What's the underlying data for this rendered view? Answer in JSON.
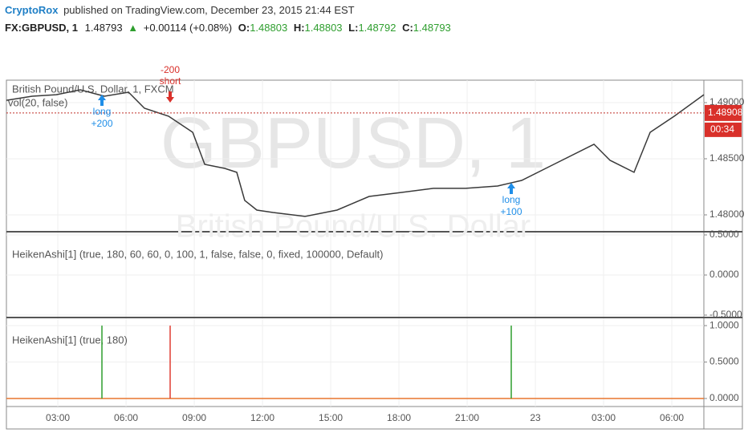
{
  "header": {
    "author": "CryptoRox",
    "published": "published on TradingView.com, December 23, 2015 21:44 EST",
    "symbol": "FX:GBPUSD, 1",
    "last": "1.48793",
    "arrow": "▲",
    "change": "+0.00114 (+0.08%)",
    "ohlc": [
      {
        "label": "O:",
        "value": "1.48803"
      },
      {
        "label": "H:",
        "value": "1.48803"
      },
      {
        "label": "L:",
        "value": "1.48792"
      },
      {
        "label": "C:",
        "value": "1.48793"
      }
    ]
  },
  "chart_data": [
    {
      "type": "line",
      "title": "British Pound/U.S. Dollar, 1, FXCM",
      "indicator": "vol(20, false)",
      "watermark": "GBPUSD, 1",
      "watermark_sub": "British Pound/U.S. Dollar",
      "color": "#3a3a3a",
      "x": [
        0.74,
        1.87,
        2.93,
        3.99,
        5.05,
        6.11,
        6.81,
        7.87,
        8.93,
        9.46,
        10.34,
        10.87,
        11.22,
        11.75,
        12.46,
        13.87,
        15.28,
        16.69,
        18.11,
        19.52,
        20.93,
        22.34,
        23.4,
        24.81,
        26.58,
        27.28,
        28.34,
        29.05,
        30.11,
        31.41
      ],
      "values": [
        1.49021,
        1.49057,
        1.49071,
        1.49114,
        1.49057,
        1.49093,
        1.4895,
        1.48879,
        1.48736,
        1.4845,
        1.48414,
        1.48379,
        1.48129,
        1.48043,
        1.48021,
        1.47986,
        1.48043,
        1.48164,
        1.482,
        1.48236,
        1.48236,
        1.48257,
        1.48307,
        1.4845,
        1.48629,
        1.48486,
        1.48379,
        1.48736,
        1.48879,
        1.49071
      ],
      "xlim": [
        0.74,
        31.41
      ],
      "xticks": [
        {
          "value": 3,
          "label": "03:00"
        },
        {
          "value": 6,
          "label": "06:00"
        },
        {
          "value": 9,
          "label": "09:00"
        },
        {
          "value": 12,
          "label": "12:00"
        },
        {
          "value": 15,
          "label": "15:00"
        },
        {
          "value": 18,
          "label": "18:00"
        },
        {
          "value": 21,
          "label": "21:00"
        },
        {
          "value": 24,
          "label": "23"
        },
        {
          "value": 27,
          "label": "03:00"
        },
        {
          "value": 30,
          "label": "06:00"
        }
      ],
      "ylim": [
        1.47857,
        1.492
      ],
      "yticks": [
        {
          "value": 1.49,
          "label": "1.49000"
        },
        {
          "value": 1.485,
          "label": "1.48500"
        },
        {
          "value": 1.48,
          "label": "1.48000"
        }
      ],
      "last_price": {
        "value": 1.48908,
        "label": "1.48908"
      },
      "countdown": "00:34",
      "annotations": [
        {
          "x": 4.94,
          "side": "long",
          "text": [
            "long",
            "+200"
          ]
        },
        {
          "x": 7.94,
          "side": "short",
          "text": [
            "-200",
            "short"
          ]
        },
        {
          "x": 22.94,
          "side": "long",
          "text": [
            "long",
            "+100"
          ]
        }
      ]
    },
    {
      "type": "empty",
      "title": "HeikenAshi[1] (true, 180, 60, 60, 0, 100, 1, false, false, 0, fixed, 100000, Default)",
      "xlim": [
        0.74,
        31.41
      ],
      "ylim": [
        -0.52,
        0.53
      ],
      "yticks": [
        {
          "value": 0.5,
          "label": "0.5000"
        },
        {
          "value": 0,
          "label": "0.0000"
        },
        {
          "value": -0.5,
          "label": "-0.5000"
        }
      ]
    },
    {
      "type": "bar",
      "title": "HeikenAshi[1] (true, 180)",
      "x": [
        4.94,
        7.94,
        22.94
      ],
      "values": [
        1,
        1,
        1
      ],
      "colors": [
        "#2e9e2e",
        "#e03c31",
        "#2e9e2e"
      ],
      "baseline_color": "#e8772e",
      "xlim": [
        0.74,
        31.41
      ],
      "ylim": [
        -0.11,
        1.1
      ],
      "yticks": [
        {
          "value": 1,
          "label": "1.0000"
        },
        {
          "value": 0.5,
          "label": "0.5000"
        },
        {
          "value": 0,
          "label": "0.0000"
        }
      ]
    }
  ]
}
